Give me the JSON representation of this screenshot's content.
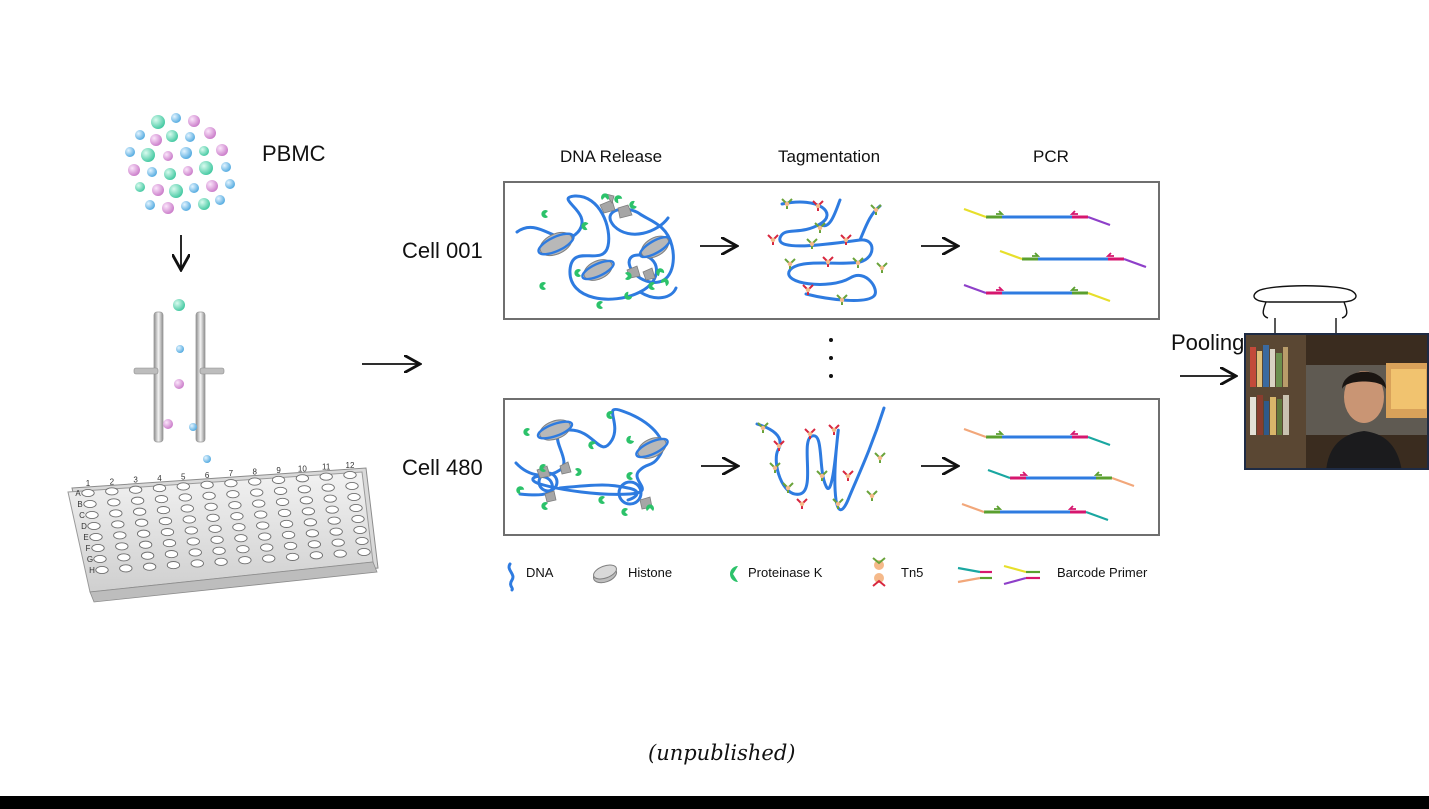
{
  "slide": {
    "pbmc_label": "PBMC",
    "cells": [
      {
        "label": "Cell 001"
      },
      {
        "label": "Cell 480"
      }
    ],
    "columns": [
      "DNA Release",
      "Tagmentation",
      "PCR"
    ],
    "legend": [
      {
        "label": "DNA",
        "icon": "dna-icon"
      },
      {
        "label": "Histone",
        "icon": "histone-icon"
      },
      {
        "label": "Proteinase K",
        "icon": "proteinase-k-icon"
      },
      {
        "label": "Tn5",
        "icon": "tn5-icon"
      },
      {
        "label": "Barcode Primer",
        "icon": "barcode-primer-icon"
      }
    ],
    "pooling_label": "Pooling",
    "footnote": "(unpublished)",
    "plate_rows": [
      "A",
      "B",
      "C",
      "D",
      "E",
      "F",
      "G",
      "H"
    ],
    "plate_cols": [
      "1",
      "2",
      "3",
      "4",
      "5",
      "6",
      "7",
      "8",
      "9",
      "10",
      "11",
      "12"
    ],
    "colors": {
      "dna": "#2e7be0",
      "proteinase": "#2cc26a",
      "histone": "#a9a9a9",
      "tn5_red": "#d8273f",
      "tn5_green": "#6aa33a",
      "primer_pink": "#d6166e",
      "primer_green": "#5a9f2f",
      "primer_yellow": "#e7df2b",
      "primer_purple": "#8e3fc9",
      "primer_orange": "#f2a77a",
      "primer_teal": "#1aa7a1",
      "cell_teal": "#49d1a9",
      "cell_pink": "#d78ed6",
      "cell_blue": "#6ab8e8"
    }
  }
}
